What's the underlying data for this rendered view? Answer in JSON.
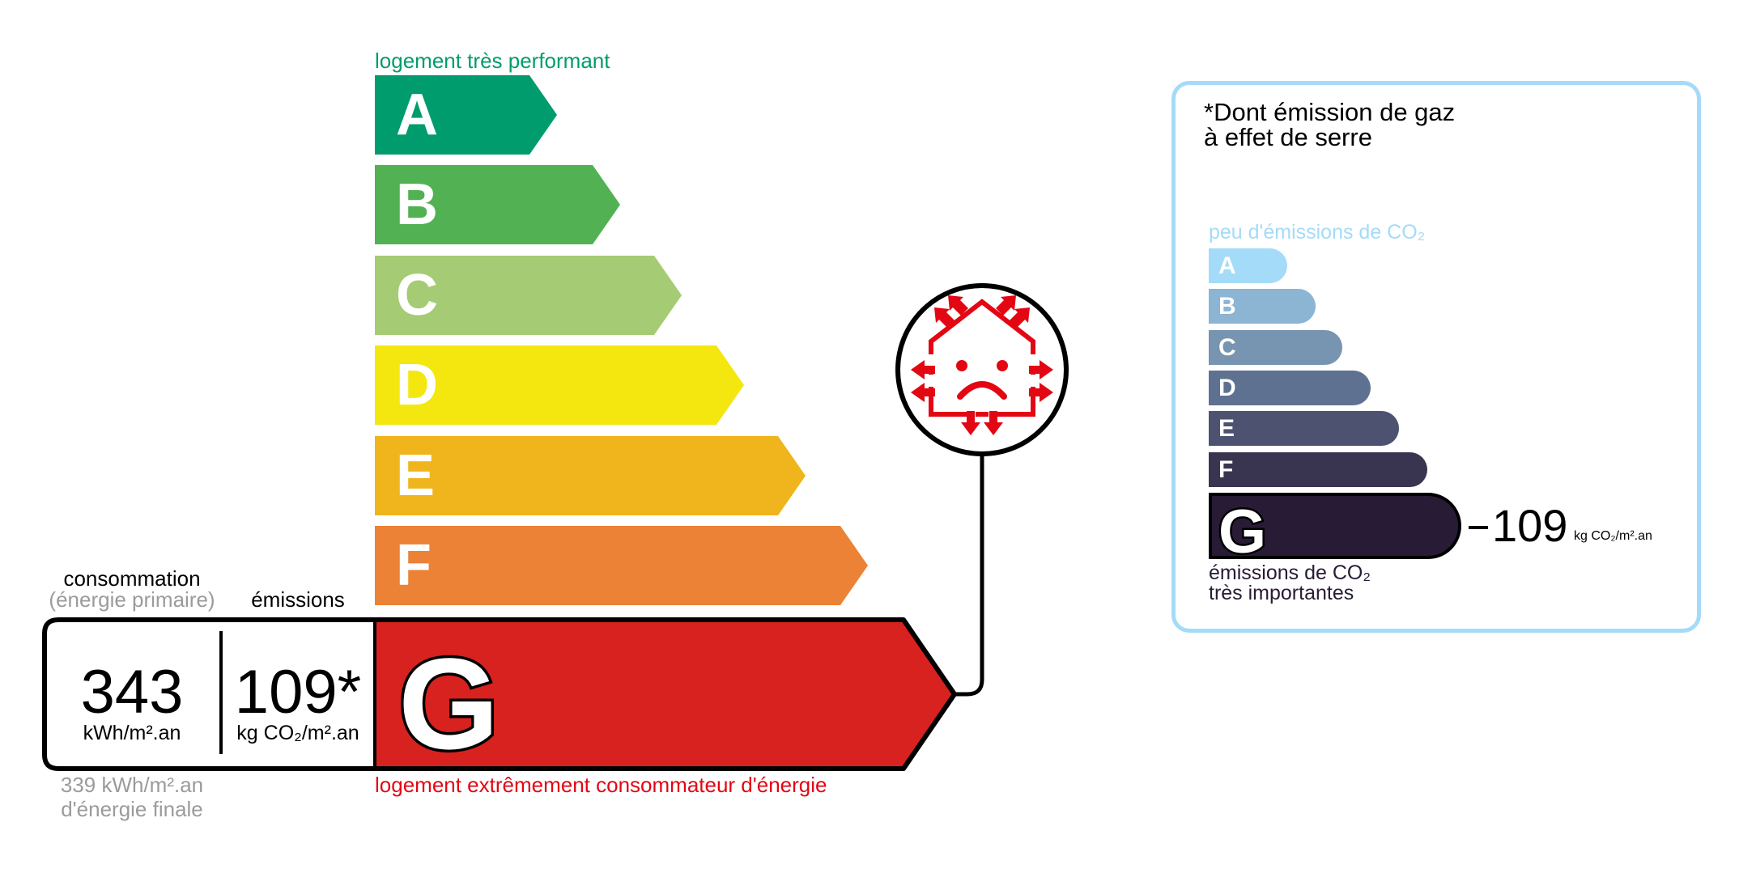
{
  "energy": {
    "top_label": "logement très performant",
    "bottom_label": "logement extrêmement consommateur d'énergie",
    "classes": [
      {
        "letter": "A",
        "color": "#009c6d"
      },
      {
        "letter": "B",
        "color": "#52b153"
      },
      {
        "letter": "C",
        "color": "#a5cc74"
      },
      {
        "letter": "D",
        "color": "#f4e70f"
      },
      {
        "letter": "E",
        "color": "#f0b41c"
      },
      {
        "letter": "F",
        "color": "#eb8235"
      },
      {
        "letter": "G",
        "color": "#d7221f"
      }
    ],
    "current_class": "G",
    "consumption_header": "consommation",
    "consumption_sub": "(énergie primaire)",
    "emissions_header": "émissions",
    "consumption_value": "343",
    "consumption_unit": "kWh/m².an",
    "emissions_value": "109*",
    "emissions_unit": "kg CO₂/m².an",
    "final_energy_value": "339 kWh/m².an",
    "final_energy_label": "d'énergie finale",
    "icon": "house-heat-loss-sad-icon"
  },
  "ghg": {
    "title_line1": "*Dont émission de gaz",
    "title_line2": "à effet de serre",
    "top_label": "peu d'émissions de CO₂",
    "bottom_label_line1": "émissions de CO₂",
    "bottom_label_line2": "très importantes",
    "classes": [
      {
        "letter": "A",
        "color": "#a4dbf8"
      },
      {
        "letter": "B",
        "color": "#8cb4d3"
      },
      {
        "letter": "C",
        "color": "#7794b1"
      },
      {
        "letter": "D",
        "color": "#5f7191"
      },
      {
        "letter": "E",
        "color": "#4d5271"
      },
      {
        "letter": "F",
        "color": "#393551"
      },
      {
        "letter": "G",
        "color": "#281b35"
      }
    ],
    "current_class": "G",
    "value": "109",
    "unit": "kg CO₂/m².an",
    "border_color": "#a4dbf8"
  }
}
